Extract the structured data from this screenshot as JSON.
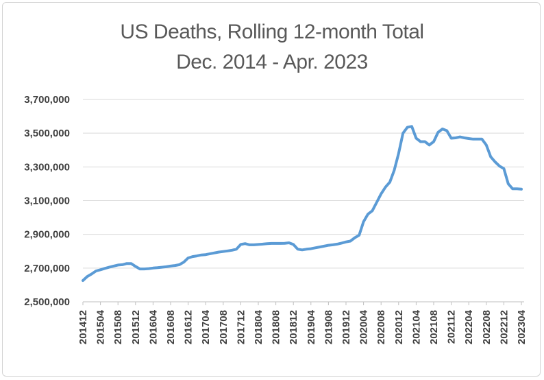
{
  "chart_data": {
    "type": "line",
    "title": "US Deaths, Rolling 12-month Total",
    "subtitle": "Dec. 2014 - Apr. 2023",
    "xlabel": "",
    "ylabel": "",
    "ylim": [
      2500000,
      3700000
    ],
    "yticks": [
      "2,500,000",
      "2,700,000",
      "2,900,000",
      "3,100,000",
      "3,300,000",
      "3,500,000",
      "3,700,000"
    ],
    "xticks": [
      "201412",
      "201504",
      "201508",
      "201512",
      "201604",
      "201608",
      "201612",
      "201704",
      "201708",
      "201712",
      "201804",
      "201808",
      "201812",
      "201904",
      "201908",
      "201912",
      "202004",
      "202008",
      "202012",
      "202104",
      "202108",
      "202112",
      "202204",
      "202208",
      "202212",
      "202304"
    ],
    "grid": true,
    "legend": "none",
    "line_color": "#5b9bd5",
    "series": [
      {
        "values": [
          2626000,
          2650000,
          2665000,
          2683000,
          2690000,
          2698000,
          2705000,
          2712000,
          2718000,
          2720000,
          2727000,
          2727000,
          2710000,
          2695000,
          2695000,
          2697000,
          2700000,
          2702000,
          2705000,
          2708000,
          2712000,
          2715000,
          2720000,
          2735000,
          2760000,
          2768000,
          2772000,
          2778000,
          2780000,
          2785000,
          2790000,
          2795000,
          2798000,
          2802000,
          2806000,
          2812000,
          2840000,
          2845000,
          2838000,
          2838000,
          2840000,
          2842000,
          2845000,
          2846000,
          2846000,
          2846000,
          2847000,
          2850000,
          2840000,
          2812000,
          2808000,
          2812000,
          2815000,
          2820000,
          2825000,
          2830000,
          2835000,
          2838000,
          2842000,
          2848000,
          2855000,
          2860000,
          2880000,
          2895000,
          2975000,
          3020000,
          3040000,
          3090000,
          3140000,
          3180000,
          3210000,
          3280000,
          3380000,
          3500000,
          3535000,
          3540000,
          3470000,
          3450000,
          3450000,
          3430000,
          3450000,
          3505000,
          3525000,
          3515000,
          3470000,
          3472000,
          3478000,
          3472000,
          3468000,
          3465000,
          3465000,
          3465000,
          3430000,
          3360000,
          3330000,
          3305000,
          3290000,
          3200000,
          3170000,
          3170000,
          3168000
        ]
      }
    ]
  }
}
